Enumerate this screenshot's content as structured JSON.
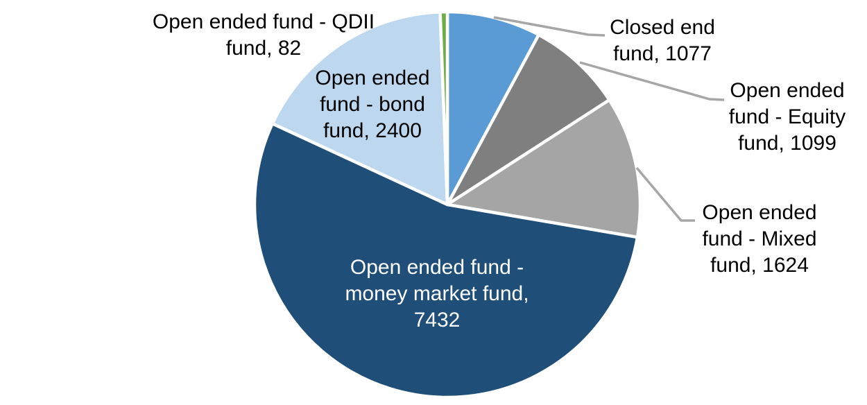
{
  "chart_data": {
    "type": "pie",
    "title": "",
    "legend_position": "none",
    "background_color": "#FFFFFF",
    "slice_border_color": "#FFFFFF",
    "leader_line_color": "#A6A6A6",
    "start_angle_deg": 0,
    "direction": "clockwise",
    "slices": [
      {
        "name": "Closed end fund",
        "value": 1077,
        "color": "#5B9BD5",
        "label": "Closed end fund, 1077",
        "label_color": "#000000",
        "label_placement": "outside-callout"
      },
      {
        "name": "Open ended fund - Equity fund",
        "value": 1099,
        "color": "#7F7F7F",
        "label": "Open ended fund - Equity fund, 1099",
        "label_color": "#000000",
        "label_placement": "outside-callout"
      },
      {
        "name": "Open ended fund - Mixed fund",
        "value": 1624,
        "color": "#A5A5A5",
        "label": "Open ended fund - Mixed fund, 1624",
        "label_color": "#000000",
        "label_placement": "outside-callout"
      },
      {
        "name": "Open ended fund - money market fund",
        "value": 7432,
        "color": "#1F4E79",
        "label": "Open ended fund - money market fund, 7432",
        "label_color": "#FFFFFF",
        "label_placement": "inside"
      },
      {
        "name": "Open ended fund - bond fund",
        "value": 2400,
        "color": "#BDD7EE",
        "label": "Open ended fund - bond fund, 2400",
        "label_color": "#000000",
        "label_placement": "over-slice"
      },
      {
        "name": "Open ended fund - QDII fund",
        "value": 82,
        "color": "#70AD47",
        "label": "Open ended fund - QDII fund, 82",
        "label_color": "#000000",
        "label_placement": "outside"
      }
    ]
  }
}
